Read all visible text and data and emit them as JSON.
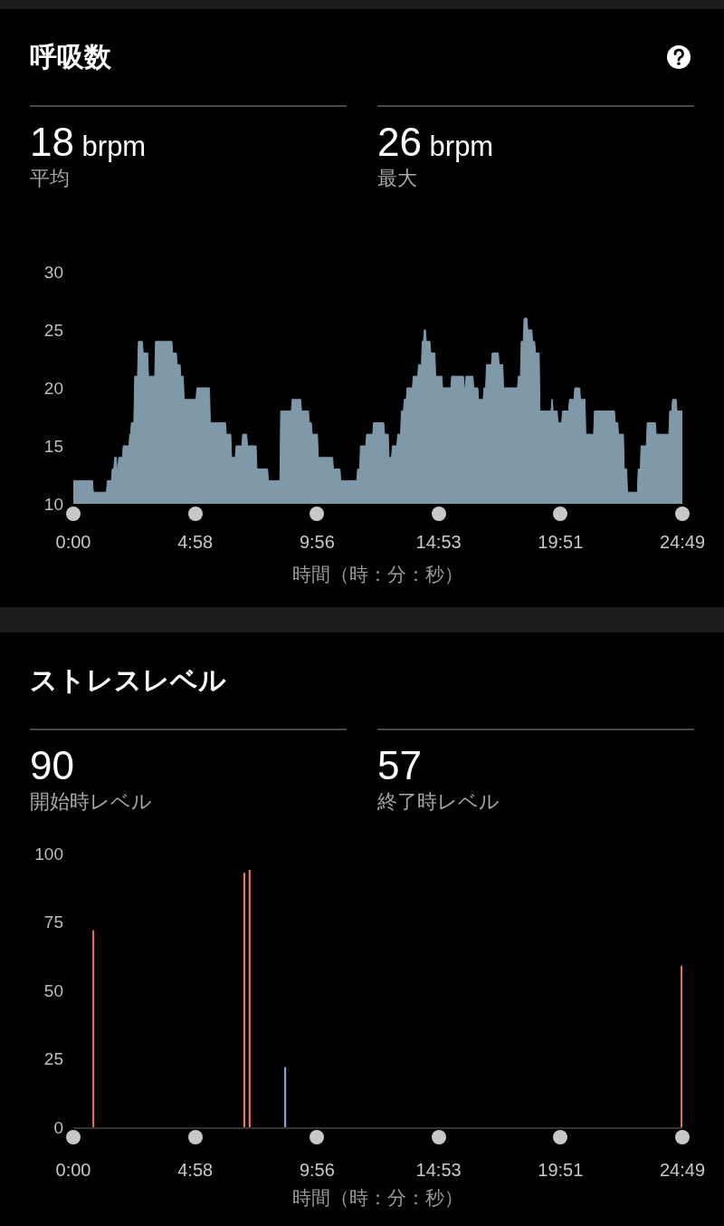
{
  "chart_data": [
    {
      "type": "area",
      "title": "呼吸数",
      "annotations": [
        "18 brpm",
        "平均",
        "26 brpm",
        "最大"
      ],
      "xlabel": "時間（時：分：秒）",
      "color": "#7f99a9",
      "x": [
        0,
        47,
        49,
        81,
        83,
        93,
        95,
        99,
        101,
        105,
        107,
        109,
        111,
        120,
        122,
        136,
        138,
        140,
        142,
        148,
        150,
        157,
        159,
        169,
        171,
        182,
        184,
        199,
        201,
        241,
        243,
        252,
        254,
        261,
        263,
        269,
        271,
        300,
        302,
        333,
        335,
        372,
        374,
        385,
        387,
        396,
        398,
        412,
        414,
        424,
        426,
        447,
        449,
        475,
        477,
        505,
        507,
        533,
        535,
        556,
        558,
        575,
        577,
        582,
        584,
        597,
        599,
        634,
        636,
        652,
        654,
        693,
        695,
        700,
        702,
        715,
        717,
        732,
        734,
        759,
        761,
        770,
        772,
        778,
        780,
        791,
        793,
        800,
        802,
        807,
        809,
        814,
        816,
        829,
        831,
        842,
        844,
        851,
        853,
        856,
        858,
        861,
        863,
        872,
        874,
        884,
        886,
        901,
        903,
        923,
        925,
        954,
        956,
        958,
        960,
        977,
        979,
        989,
        991,
        1002,
        1004,
        1008,
        1010,
        1022,
        1024,
        1039,
        1041,
        1050,
        1052,
        1086,
        1088,
        1093,
        1095,
        1100,
        1102,
        1109,
        1111,
        1121,
        1123,
        1128,
        1130,
        1139,
        1141,
        1168,
        1170,
        1171,
        1173,
        1183,
        1185,
        1194,
        1196,
        1211,
        1213,
        1224,
        1226,
        1238,
        1240,
        1251,
        1253,
        1272,
        1274,
        1323,
        1325,
        1331,
        1333,
        1345,
        1347,
        1353,
        1355,
        1379,
        1381,
        1386,
        1388,
        1401,
        1403,
        1423,
        1425,
        1456,
        1458,
        1463,
        1465,
        1474,
        1476,
        1489
      ],
      "values": [
        12,
        12,
        11,
        11,
        12,
        12,
        13,
        13,
        14,
        14,
        13,
        13,
        14,
        14,
        15,
        15,
        16,
        16,
        17,
        17,
        21,
        21,
        24,
        24,
        23,
        23,
        21,
        21,
        24,
        24,
        23,
        23,
        22,
        22,
        21,
        21,
        19,
        19,
        20,
        20,
        17,
        17,
        16,
        16,
        14,
        14,
        15,
        15,
        16,
        16,
        15,
        15,
        13,
        13,
        12,
        12,
        18,
        18,
        19,
        19,
        18,
        18,
        17,
        17,
        16,
        16,
        14,
        14,
        13,
        13,
        12,
        12,
        13,
        13,
        15,
        15,
        16,
        16,
        17,
        17,
        16,
        16,
        14,
        14,
        15,
        15,
        16,
        16,
        18,
        18,
        19,
        19,
        20,
        20,
        21,
        21,
        22,
        22,
        24,
        24,
        25,
        25,
        24,
        24,
        23,
        23,
        21,
        21,
        20,
        20,
        21,
        21,
        20,
        20,
        21,
        21,
        20,
        20,
        19,
        19,
        20,
        20,
        22,
        22,
        23,
        23,
        22,
        22,
        20,
        20,
        21,
        21,
        24,
        24,
        26,
        26,
        25,
        25,
        24,
        24,
        23,
        23,
        18,
        18,
        19,
        19,
        18,
        18,
        17,
        17,
        18,
        18,
        19,
        19,
        20,
        20,
        19,
        19,
        16,
        16,
        18,
        18,
        17,
        17,
        16,
        16,
        13,
        13,
        11,
        11,
        13,
        13,
        15,
        15,
        17,
        17,
        16,
        16,
        18,
        18,
        19,
        19,
        18,
        18
      ],
      "xlim": [
        0,
        1489
      ],
      "xticks": [
        {
          "value": 0,
          "label": "0:00"
        },
        {
          "value": 298,
          "label": "4:58"
        },
        {
          "value": 596,
          "label": "9:56"
        },
        {
          "value": 893,
          "label": "14:53"
        },
        {
          "value": 1191,
          "label": "19:51"
        },
        {
          "value": 1489,
          "label": "24:49"
        }
      ],
      "ylim": [
        10,
        30
      ],
      "yticks": [
        10,
        15,
        20,
        25,
        30
      ]
    },
    {
      "type": "bar",
      "title": "ストレスレベル",
      "annotations": [
        "90",
        "開始時レベル",
        "57",
        "終了時レベル"
      ],
      "xlabel": "時間（時：分：秒）",
      "x": [
        49,
        418,
        431,
        518,
        1487
      ],
      "values": [
        72,
        93,
        94,
        22,
        59
      ],
      "colors": [
        "#e8744a",
        "#f07c4e",
        "#f07c4e",
        "#8e9fd8",
        "#e8744a"
      ],
      "xlim": [
        0,
        1489
      ],
      "xticks": [
        {
          "value": 0,
          "label": "0:00"
        },
        {
          "value": 298,
          "label": "4:58"
        },
        {
          "value": 596,
          "label": "9:56"
        },
        {
          "value": 893,
          "label": "14:53"
        },
        {
          "value": 1191,
          "label": "19:51"
        },
        {
          "value": 1489,
          "label": "24:49"
        }
      ],
      "ylim": [
        0,
        100
      ],
      "yticks": [
        0,
        25,
        50,
        75,
        100
      ]
    }
  ]
}
